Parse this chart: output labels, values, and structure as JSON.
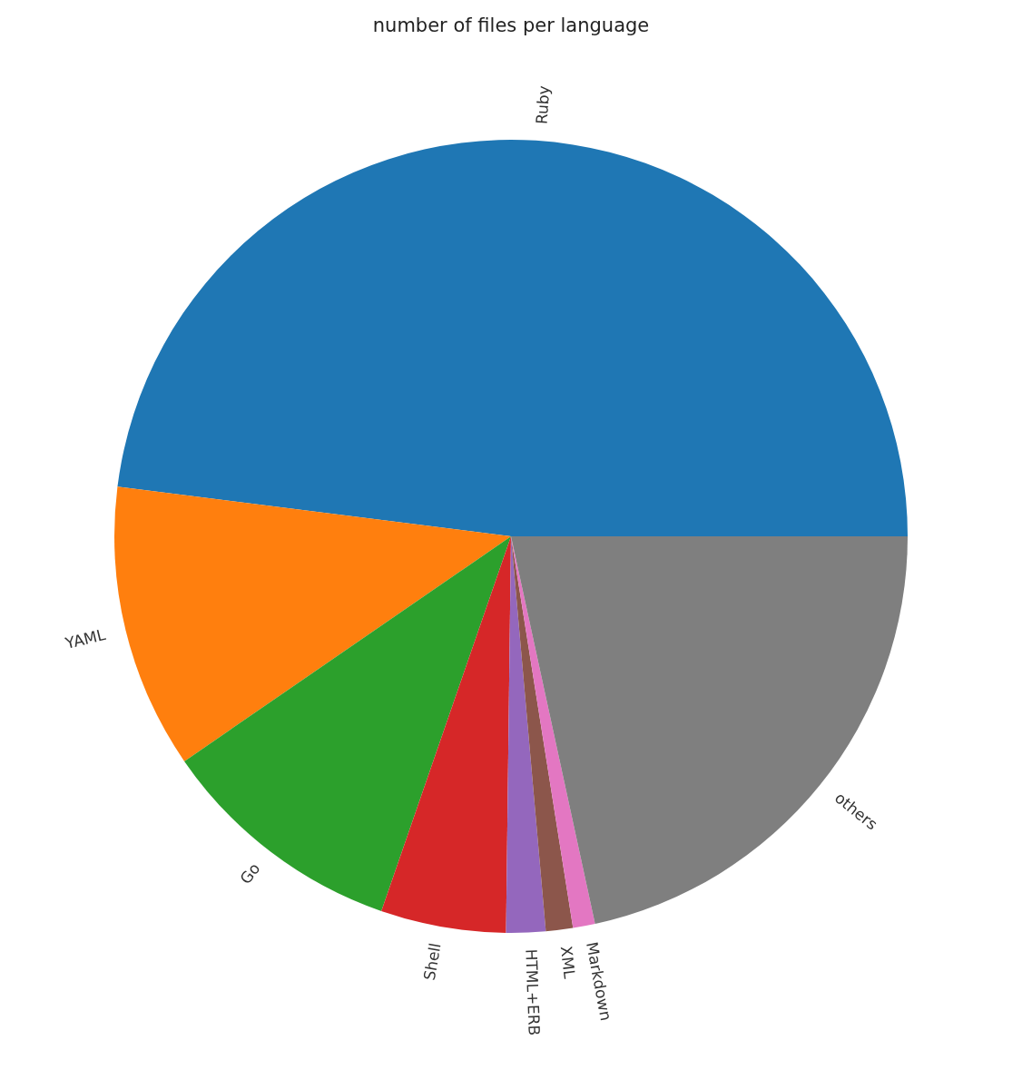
{
  "chart_data": {
    "type": "pie",
    "title": "number of files per language",
    "categories": [
      "Ruby",
      "YAML",
      "Go",
      "Shell",
      "HTML+ERB",
      "XML",
      "Markdown",
      "others"
    ],
    "values": [
      48.0,
      11.6,
      10.1,
      5.1,
      1.6,
      1.1,
      0.9,
      21.6
    ],
    "colors": [
      "#1f77b4",
      "#ff7f0e",
      "#2ca02c",
      "#d62728",
      "#9467bd",
      "#8c564b",
      "#e377c2",
      "#7f7f7f"
    ],
    "legend": false
  }
}
